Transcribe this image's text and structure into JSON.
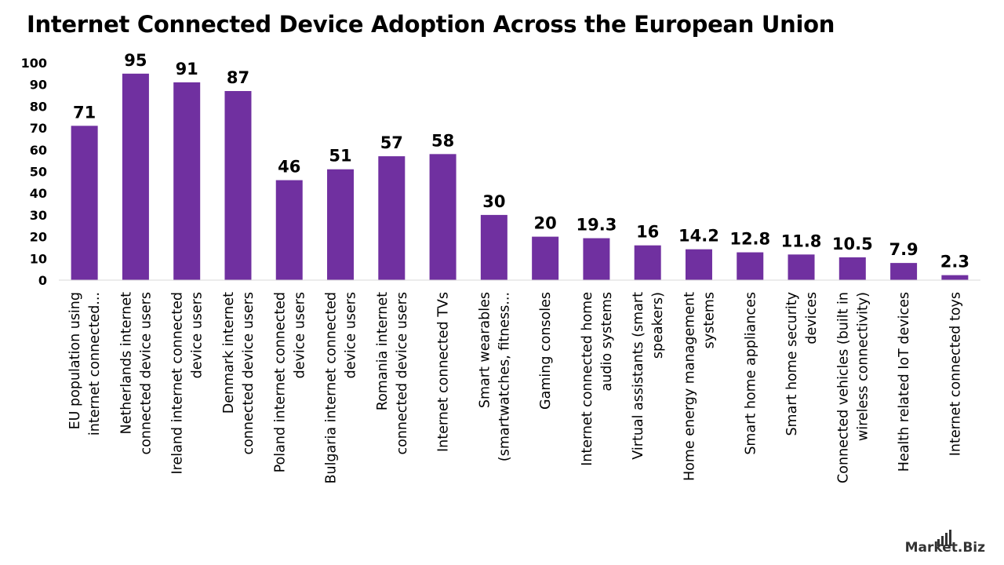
{
  "brand": {
    "logo_text": "Market.Biz",
    "bar_color": "#7030A0"
  },
  "chart_data": {
    "type": "bar",
    "title": "Internet Connected Device Adoption Across the European Union",
    "xlabel": "",
    "ylabel": "",
    "ylim": [
      0,
      100
    ],
    "yticks": [
      0,
      10,
      20,
      30,
      40,
      50,
      60,
      70,
      80,
      90,
      100
    ],
    "grid": false,
    "legend": "none",
    "categories": [
      [
        "EU population using",
        "internet connected..."
      ],
      [
        "Netherlands internet",
        "connected device users"
      ],
      [
        "Ireland internet connected",
        "device users"
      ],
      [
        "Denmark internet",
        "connected device users"
      ],
      [
        "Poland internet connected",
        "device users"
      ],
      [
        "Bulgaria internet connected",
        "device users"
      ],
      [
        "Romania internet",
        "connected device users"
      ],
      [
        "Internet connected TVs"
      ],
      [
        "Smart wearables",
        "(smartwatches, fitness..."
      ],
      [
        "Gaming consoles"
      ],
      [
        "Internet connected home",
        "audio systems"
      ],
      [
        "Virtual assistants (smart",
        "speakers)"
      ],
      [
        "Home energy management",
        "systems"
      ],
      [
        "Smart home appliances"
      ],
      [
        "Smart home security",
        "devices"
      ],
      [
        "Connected vehicles (built in",
        "wireless connectivity)"
      ],
      [
        "Health related IoT devices"
      ],
      [
        "Internet connected toys"
      ]
    ],
    "values": [
      71,
      95,
      91,
      87,
      46,
      51,
      57,
      58,
      30,
      20,
      19.3,
      16,
      14.2,
      12.8,
      11.8,
      10.5,
      7.9,
      2.3
    ],
    "value_labels": [
      "71",
      "95",
      "91",
      "87",
      "46",
      "51",
      "57",
      "58",
      "30",
      "20",
      "19.3",
      "16",
      "14.2",
      "12.8",
      "11.8",
      "10.5",
      "7.9",
      "2.3"
    ]
  }
}
